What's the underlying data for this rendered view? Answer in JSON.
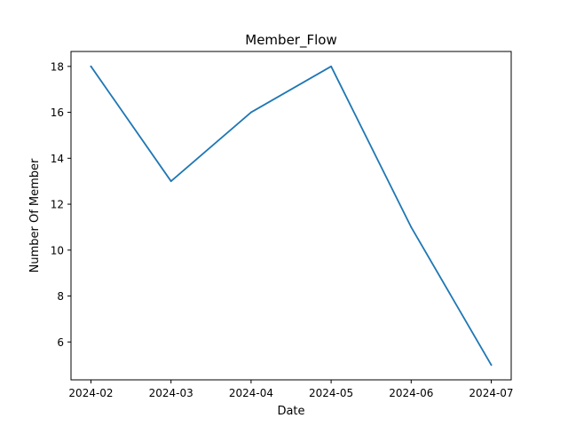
{
  "chart_data": {
    "type": "line",
    "title": "Member_Flow",
    "xlabel": "Date",
    "ylabel": "Number Of Member",
    "x": [
      "2024-02",
      "2024-03",
      "2024-04",
      "2024-05",
      "2024-06",
      "2024-07"
    ],
    "series": [
      {
        "values": [
          18,
          13,
          16,
          18,
          11,
          5
        ],
        "color": "#1f77b4"
      }
    ],
    "yticks": [
      6,
      8,
      10,
      12,
      14,
      16,
      18
    ],
    "ylim": [
      4.35,
      18.65
    ],
    "grid": false,
    "legend": "none"
  }
}
